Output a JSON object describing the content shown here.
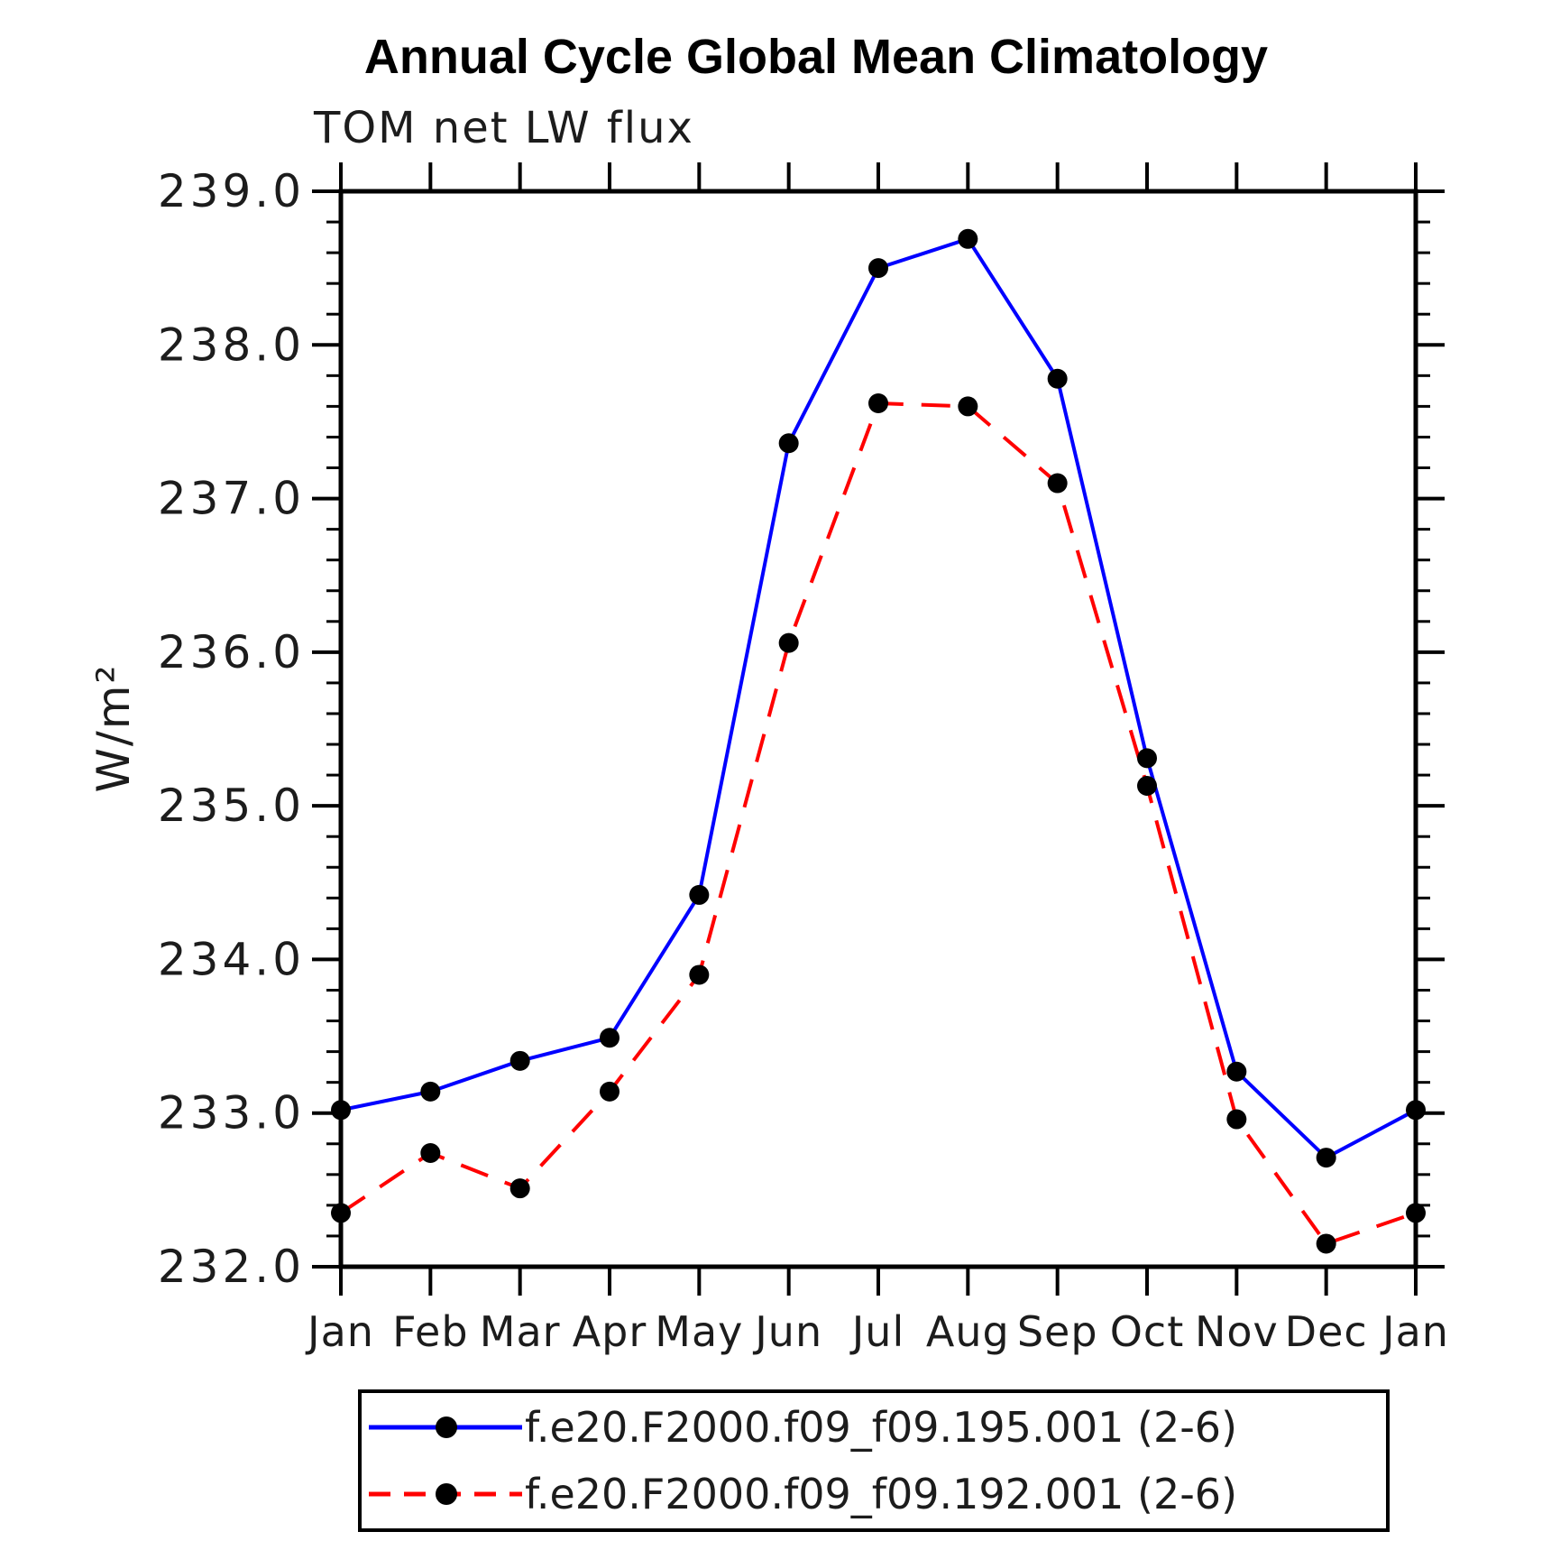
{
  "chart_data": {
    "type": "line",
    "title": "Annual Cycle Global Mean Climatology",
    "subtitle": "TOM net LW flux",
    "ylabel": "W/m²",
    "x_tick_labels": [
      "Jan",
      "Feb",
      "Mar",
      "Apr",
      "May",
      "Jun",
      "Jul",
      "Aug",
      "Sep",
      "Oct",
      "Nov",
      "Dec",
      "Jan"
    ],
    "ylim": [
      232.0,
      239.0
    ],
    "y_major_ticks": [
      232.0,
      233.0,
      234.0,
      235.0,
      236.0,
      237.0,
      238.0,
      239.0
    ],
    "y_minor_step": 0.2,
    "grid": false,
    "legend_position": "bottom",
    "axis_color": "#000000",
    "marker_color": "#000000",
    "series": [
      {
        "name": "f.e20.F2000.f09_f09.195.001 (2-6)",
        "color": "#0000ff",
        "line_style": "solid",
        "marker": "circle",
        "values": [
          233.02,
          233.14,
          233.34,
          233.49,
          234.42,
          237.36,
          238.5,
          238.69,
          237.78,
          235.31,
          233.27,
          232.71,
          233.02
        ]
      },
      {
        "name": "f.e20.F2000.f09_f09.192.001 (2-6)",
        "color": "#ff0000",
        "line_style": "dashed",
        "marker": "circle",
        "values": [
          232.35,
          232.74,
          232.51,
          233.14,
          233.9,
          236.06,
          237.62,
          237.6,
          237.1,
          235.13,
          232.96,
          232.15,
          232.35
        ]
      }
    ]
  }
}
